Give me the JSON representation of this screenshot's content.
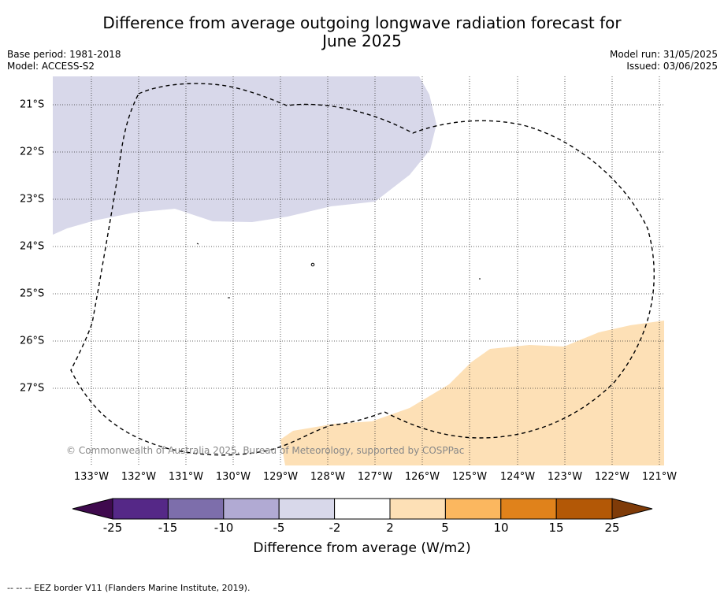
{
  "title": "Difference from average outgoing longwave radiation forecast for\nJune 2025",
  "meta_left": {
    "base_period": "Base period: 1981-2018",
    "model": "Model: ACCESS-S2"
  },
  "meta_right": {
    "model_run": "Model run: 31/05/2025",
    "issued": "Issued: 03/06/2025"
  },
  "credit": "© Commonwealth of Australia 2025, Bureau of Meteorology, supported by COSPPac",
  "map": {
    "lon_labels": [
      "133°W",
      "132°W",
      "131°W",
      "130°W",
      "129°W",
      "128°W",
      "127°W",
      "126°W",
      "125°W",
      "124°W",
      "123°W",
      "122°W",
      "121°W"
    ],
    "lat_labels": [
      "21°S",
      "22°S",
      "23°S",
      "24°S",
      "25°S",
      "26°S",
      "27°S"
    ],
    "lon_range": [
      -133.4,
      -121.0
    ],
    "lat_range": [
      -20.6,
      -28.6
    ],
    "regions": [
      {
        "category": "-5 to -2",
        "color": "#d8d8ea"
      },
      {
        "category": "2 to 5",
        "color": "#fde0b6"
      }
    ],
    "eez_border": "dashed"
  },
  "colorbar": {
    "ticks": [
      "-25",
      "-15",
      "-10",
      "-5",
      "-2",
      "2",
      "5",
      "10",
      "15",
      "25"
    ],
    "colors": [
      "#3f0a4e",
      "#552887",
      "#7d6eab",
      "#b1aad3",
      "#d8d8ea",
      "#ffffff",
      "#fde0b6",
      "#fbb75f",
      "#e0821b",
      "#b35806",
      "#7f3b08"
    ],
    "label": "Difference from average (W/m2)"
  },
  "footnote": "--  --  -- EEZ border V11 (Flanders Marine Institute, 2019)."
}
